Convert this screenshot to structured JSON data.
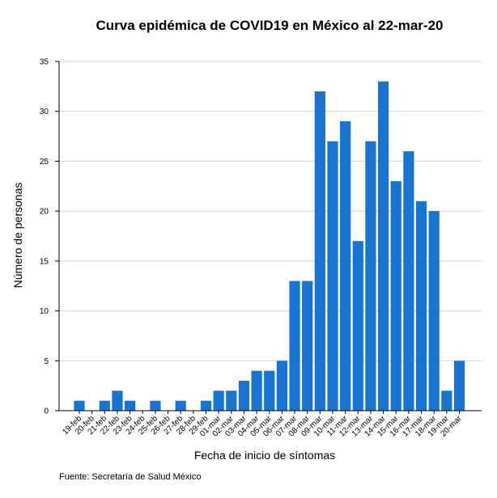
{
  "chart_data": {
    "type": "bar",
    "title": "Curva epidémica de COVID19 en México al 22-mar-20",
    "xlabel": "Fecha de inicio de síntomas",
    "ylabel": "Número de personas",
    "ylim": [
      0,
      35
    ],
    "yticks": [
      0,
      5,
      10,
      15,
      20,
      25,
      30,
      35
    ],
    "grid": "horizontal",
    "bar_color": "#1874d2",
    "categories": [
      "19-feb",
      "20-feb",
      "21-feb",
      "22-feb",
      "23-feb",
      "24-feb",
      "25-feb",
      "26-feb",
      "27-feb",
      "28-feb",
      "29-feb",
      "01-mar",
      "02-mar",
      "03-mar",
      "04-mar",
      "05-mar",
      "06-mar",
      "07-mar",
      "08-mar",
      "09-mar",
      "10-mar",
      "11-mar",
      "12-mar",
      "13-mar",
      "14-mar",
      "15-mar",
      "16-mar",
      "17-mar",
      "18-mar",
      "19-mar",
      "20-mar"
    ],
    "values": [
      1,
      0,
      1,
      2,
      1,
      0,
      1,
      0,
      1,
      0,
      1,
      2,
      2,
      3,
      4,
      4,
      5,
      13,
      13,
      32,
      27,
      29,
      17,
      27,
      33,
      23,
      26,
      21,
      20,
      2,
      5
    ]
  },
  "source": "Fuente: Secretaría de Salud México"
}
